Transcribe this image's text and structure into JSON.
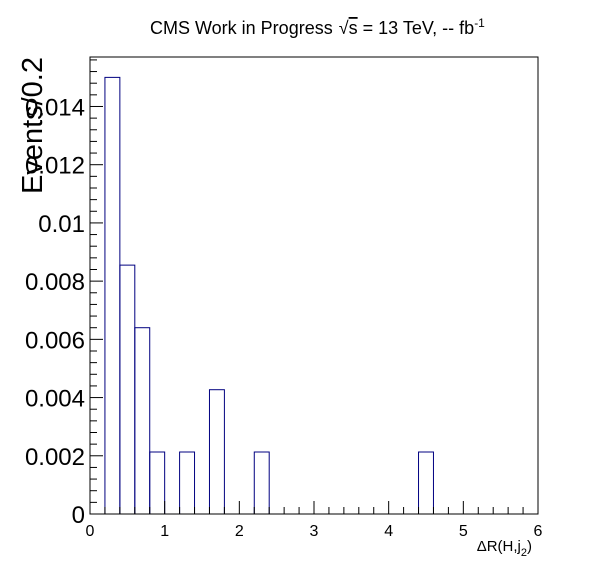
{
  "chart_data": {
    "type": "bar",
    "style": "step-histogram",
    "title": {
      "prefix": "CMS Work in Progress",
      "sqrt_symbol": "√",
      "s": "s",
      "middle": " = 13 TeV, -- fb",
      "superscript": "-1"
    },
    "xlabel": {
      "main": "ΔR(H,j",
      "subscript": "2",
      "close": ")"
    },
    "ylabel": "Events/0.2",
    "xlim": [
      0,
      6
    ],
    "ylim": [
      0,
      0.0157
    ],
    "bin_width": 0.2,
    "x_ticks": [
      "0",
      "1",
      "2",
      "3",
      "4",
      "5",
      "6"
    ],
    "y_ticks": [
      "0",
      "0.002",
      "0.004",
      "0.006",
      "0.008",
      "0.01",
      "0.012",
      "0.014"
    ],
    "bins": [
      {
        "low": 0.2,
        "high": 0.4,
        "value": 0.015
      },
      {
        "low": 0.4,
        "high": 0.6,
        "value": 0.00855
      },
      {
        "low": 0.6,
        "high": 0.8,
        "value": 0.0064
      },
      {
        "low": 0.8,
        "high": 1.0,
        "value": 0.00213
      },
      {
        "low": 1.2,
        "high": 1.4,
        "value": 0.00213
      },
      {
        "low": 1.6,
        "high": 1.8,
        "value": 0.00427
      },
      {
        "low": 2.2,
        "high": 2.4,
        "value": 0.00213
      },
      {
        "low": 4.4,
        "high": 4.6,
        "value": 0.00213
      }
    ],
    "colors": {
      "histogram_line": "#000080",
      "axis": "#000000"
    },
    "grid": false,
    "legend": "none"
  }
}
